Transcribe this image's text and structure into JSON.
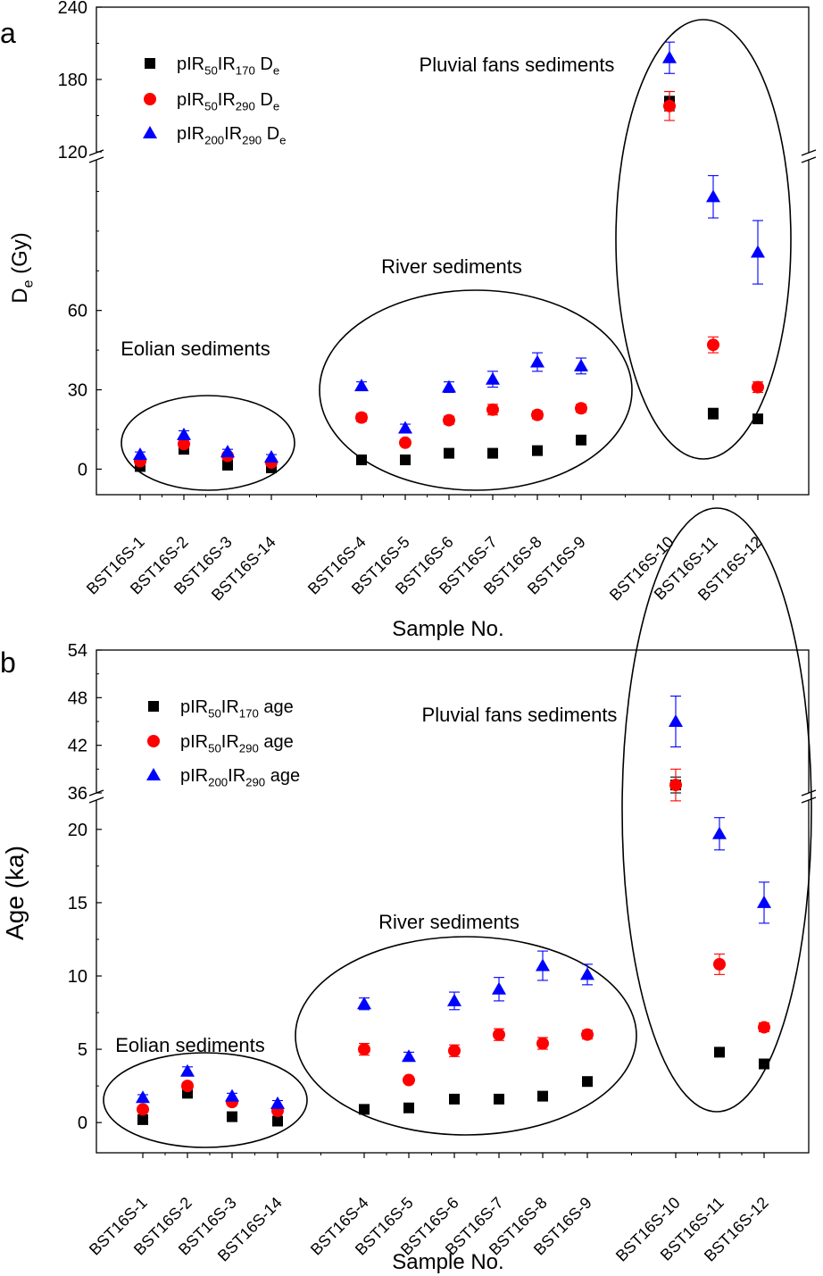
{
  "colors": {
    "pIR50IR170": "#000000",
    "pIR50IR290": "#ff0000",
    "pIR200IR290": "#0000ff"
  },
  "chart_data": [
    {
      "panel_label": "a",
      "type": "scatter",
      "ylabel": {
        "main": "D",
        "sub": "e",
        "tail": " (Gy)"
      },
      "xlabel": "Sample No.",
      "categories": [
        "BST16S-1",
        "BST16S-2",
        "BST16S-3",
        "BST16S-14",
        "BST16S-4",
        "BST16S-5",
        "BST16S-6",
        "BST16S-7",
        "BST16S-8",
        "BST16S-9",
        "BST16S-10",
        "BST16S-11",
        "BST16S-12"
      ],
      "y_axis": {
        "type": "broken",
        "lower_range": [
          -10,
          120
        ],
        "upper_range": [
          120,
          240
        ],
        "lower_ticks": [
          0,
          30,
          60
        ],
        "upper_ticks": [
          120,
          180,
          240
        ]
      },
      "series": [
        {
          "key": "pIR50IR170",
          "name": [
            [
              "pIR",
              ""
            ],
            [
              "50",
              "sub"
            ],
            [
              "IR",
              ""
            ],
            [
              "170",
              "sub"
            ],
            [
              " D",
              ""
            ],
            [
              "e",
              "sub"
            ]
          ],
          "marker": "square",
          "values": [
            1,
            7.5,
            1.5,
            0.5,
            3.5,
            3.5,
            6,
            6,
            7,
            11,
            162,
            21,
            19
          ],
          "errors": [
            1,
            1,
            1,
            1,
            1,
            1,
            1,
            1,
            1,
            1.5,
            8,
            2,
            1.5
          ]
        },
        {
          "key": "pIR50IR290",
          "name": [
            [
              "pIR",
              ""
            ],
            [
              "50",
              "sub"
            ],
            [
              "IR",
              ""
            ],
            [
              "290",
              "sub"
            ],
            [
              " D",
              ""
            ],
            [
              "e",
              "sub"
            ]
          ],
          "marker": "circle",
          "values": [
            3,
            9.5,
            5,
            2.5,
            19.5,
            10,
            18.5,
            22.5,
            20.5,
            23,
            158,
            47,
            31
          ],
          "errors": [
            1,
            1,
            1,
            1,
            1.5,
            1,
            1.5,
            2,
            1.5,
            1.5,
            12,
            3,
            2
          ]
        },
        {
          "key": "pIR200IR290",
          "name": [
            [
              "pIR",
              ""
            ],
            [
              "200",
              "sub"
            ],
            [
              "IR",
              ""
            ],
            [
              "290",
              "sub"
            ],
            [
              " D",
              ""
            ],
            [
              "e",
              "sub"
            ]
          ],
          "marker": "triangle",
          "values": [
            5.5,
            13,
            6.5,
            4.5,
            31.5,
            15.5,
            31,
            34,
            40.5,
            39,
            198,
            103,
            82
          ],
          "errors": [
            1,
            1.5,
            1,
            1,
            1.5,
            1.5,
            2,
            3,
            3.5,
            3,
            13,
            8,
            12
          ]
        }
      ],
      "annotations": [
        "Eolian sediments",
        "River sediments",
        "Pluvial fans sediments"
      ],
      "legend_position": "top-left"
    },
    {
      "panel_label": "b",
      "type": "scatter",
      "ylabel": {
        "main": "Age (ka)"
      },
      "xlabel": "Sample No.",
      "categories": [
        "BST16S-1",
        "BST16S-2",
        "BST16S-3",
        "BST16S-14",
        "BST16S-4",
        "BST16S-5",
        "BST16S-6",
        "BST16S-7",
        "BST16S-8",
        "BST16S-9",
        "BST16S-10",
        "BST16S-11",
        "BST16S-12"
      ],
      "y_axis": {
        "type": "broken",
        "lower_range": [
          -2,
          22
        ],
        "upper_range": [
          36,
          54
        ],
        "lower_ticks": [
          0,
          5,
          10,
          15,
          20
        ],
        "upper_ticks": [
          36,
          42,
          48,
          54
        ]
      },
      "series": [
        {
          "key": "pIR50IR170",
          "name": [
            [
              "pIR",
              ""
            ],
            [
              "50",
              "sub"
            ],
            [
              "IR",
              ""
            ],
            [
              "170",
              "sub"
            ],
            [
              " age",
              ""
            ]
          ],
          "marker": "square",
          "values": [
            0.2,
            2.0,
            0.4,
            0.1,
            0.9,
            1.0,
            1.6,
            1.6,
            1.8,
            2.8,
            37,
            4.8,
            4.0
          ],
          "errors": [
            0.2,
            0.2,
            0.2,
            0.2,
            0.2,
            0.2,
            0.2,
            0.2,
            0.2,
            0.2,
            1.0,
            0.3,
            0.3
          ]
        },
        {
          "key": "pIR50IR290",
          "name": [
            [
              "pIR",
              ""
            ],
            [
              "50",
              "sub"
            ],
            [
              "IR",
              ""
            ],
            [
              "290",
              "sub"
            ],
            [
              " age",
              ""
            ]
          ],
          "marker": "circle",
          "values": [
            0.9,
            2.5,
            1.4,
            0.8,
            5.0,
            2.9,
            4.9,
            6.0,
            5.4,
            6.0,
            37,
            10.8,
            6.5
          ],
          "errors": [
            0.2,
            0.2,
            0.2,
            0.2,
            0.4,
            0.2,
            0.4,
            0.4,
            0.4,
            0.3,
            2.0,
            0.7,
            0.3
          ]
        },
        {
          "key": "pIR200IR290",
          "name": [
            [
              "pIR",
              ""
            ],
            [
              "200",
              "sub"
            ],
            [
              "IR",
              ""
            ],
            [
              "290",
              "sub"
            ],
            [
              " age",
              ""
            ]
          ],
          "marker": "triangle",
          "values": [
            1.7,
            3.5,
            1.8,
            1.3,
            8.1,
            4.5,
            8.3,
            9.1,
            10.7,
            10.1,
            45,
            19.7,
            15.0
          ],
          "errors": [
            0.2,
            0.3,
            0.2,
            0.2,
            0.4,
            0.3,
            0.6,
            0.8,
            1.0,
            0.7,
            3.2,
            1.1,
            1.4
          ]
        }
      ],
      "annotations": [
        "Eolian sediments",
        "River sediments",
        "Pluvial fans sediments"
      ],
      "legend_position": "top-left"
    }
  ]
}
